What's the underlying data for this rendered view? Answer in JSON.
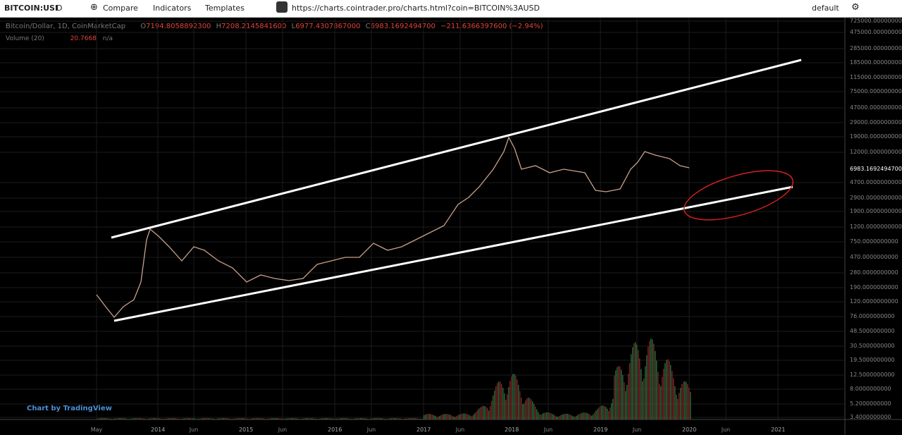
{
  "toolbar": {
    "symbol": "BITCOIN:USI",
    "interval": "D",
    "compare": "Compare",
    "indicators": "Indicators",
    "templates": "Templates",
    "url": "https://charts.cointrader.pro/charts.html?coin=BITCOIN%3AUSD",
    "layout": "default"
  },
  "legend": {
    "title": "Bitcoin/Dollar, 1D, CoinMarketCap",
    "open_label": "O",
    "open": "7194.8058892300",
    "high_label": "H",
    "high": "7208.2145841600",
    "low_label": "L",
    "low": "6977.4307867000",
    "close_label": "C",
    "close": "6983.1692494700",
    "change": "−211.6366397600 (−2.94%)",
    "volume_title": "Volume (20)",
    "volume": "20.7668",
    "volume_ma": "n/a"
  },
  "price_axis": {
    "labels": [
      "725000.0000000000",
      "475000.0000000000",
      "285000.0000000000",
      "185000.0000000000",
      "115000.0000000000",
      "75000.0000000000",
      "47000.0000000000",
      "29000.0000000000",
      "19000.0000000000",
      "12000.0000000000",
      "4700.0000000000",
      "2900.0000000000",
      "1900.0000000000",
      "1200.0000000000",
      "750.0000000000",
      "470.0000000000",
      "280.0000000000",
      "190.0000000000",
      "120.0000000000",
      "76.0000000000"
    ],
    "last_price": "6983.1692494700"
  },
  "volume_axis": {
    "labels": [
      "48.5000000000",
      "30.5000000000",
      "19.5000000000",
      "12.5000000000",
      "8.0000000000",
      "5.2000000000",
      "3.4000000000"
    ]
  },
  "time_axis": {
    "labels": [
      "May",
      "2014",
      "Jun",
      "2015",
      "Jun",
      "2016",
      "Jun",
      "2017",
      "Jun",
      "2018",
      "Jun",
      "2019",
      "Jun",
      "2020",
      "Jun",
      "2021"
    ]
  },
  "branding": "Chart by TradingView"
}
